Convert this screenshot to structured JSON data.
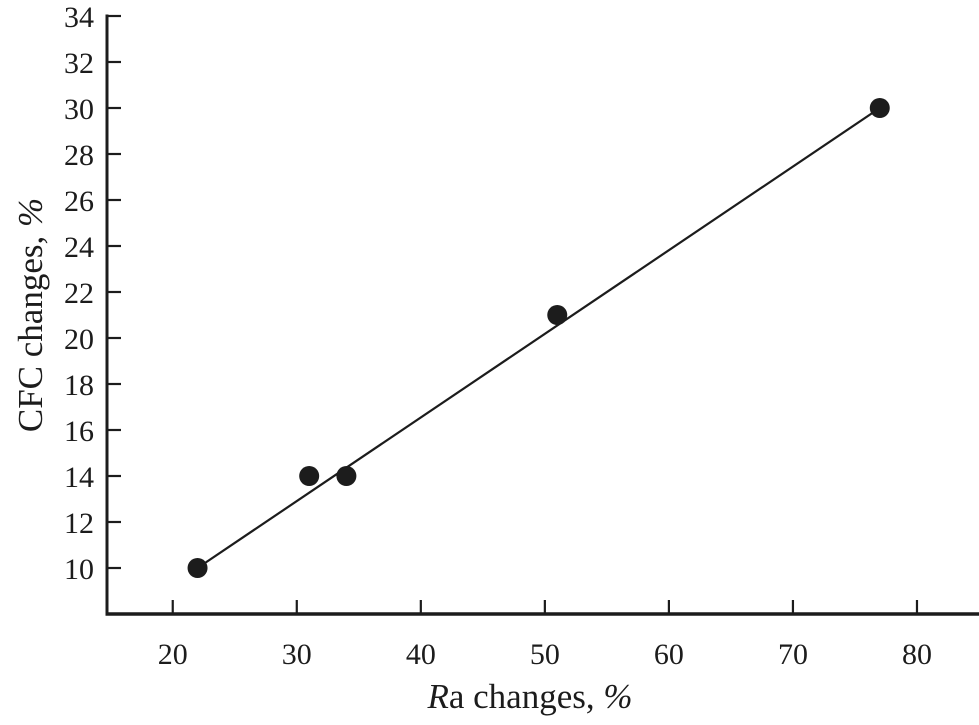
{
  "figure": {
    "background": "#ffffff",
    "ink_color": "#1c1c1c"
  },
  "chart_data": {
    "type": "scatter",
    "title": "",
    "xlabel": "Ra changes, %",
    "ylabel": "CFC changes, %",
    "xlabel_parts": [
      {
        "text": "R",
        "italic": true
      },
      {
        "text": "a changes, ",
        "italic": false
      },
      {
        "text": "%",
        "italic": true
      }
    ],
    "ylabel_parts": [
      {
        "text": "CFC changes, ",
        "italic": false
      },
      {
        "text": "%",
        "italic": true
      }
    ],
    "x_ticks": [
      20,
      30,
      40,
      50,
      60,
      70,
      80
    ],
    "y_ticks": [
      10,
      12,
      14,
      16,
      18,
      20,
      22,
      24,
      26,
      28,
      30,
      32,
      34
    ],
    "xlim": [
      14.7,
      85
    ],
    "ylim": [
      8,
      34
    ],
    "grid": false,
    "legend": false,
    "points": [
      {
        "x": 22,
        "y": 10
      },
      {
        "x": 31,
        "y": 14
      },
      {
        "x": 34,
        "y": 14
      },
      {
        "x": 51,
        "y": 21
      },
      {
        "x": 77,
        "y": 30
      }
    ],
    "trend_line": {
      "x1": 22,
      "y1": 10,
      "x2": 77,
      "y2": 30
    }
  }
}
